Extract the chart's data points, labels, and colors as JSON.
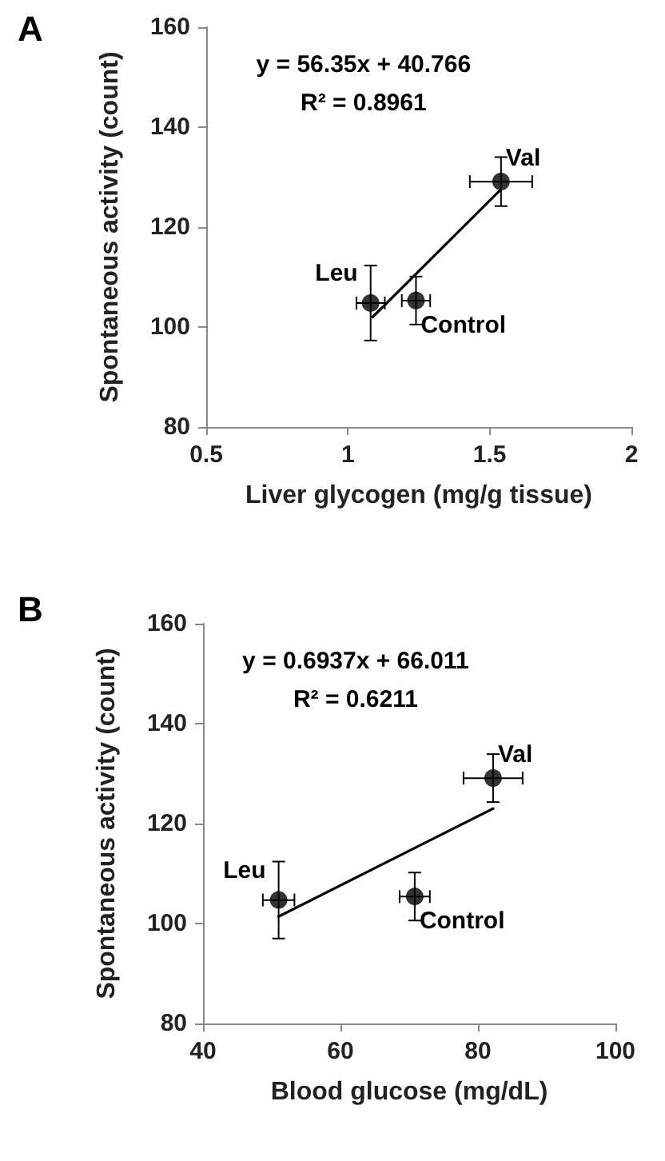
{
  "chart_data": [
    {
      "type": "scatter",
      "title": "A",
      "xlabel": "Liver glycogen (mg/g tissue)",
      "ylabel": "Spontaneous activity (count)",
      "xlim": [
        0.5,
        2
      ],
      "xticks": [
        0.5,
        1,
        1.5,
        2
      ],
      "ylim": [
        80,
        160
      ],
      "yticks": [
        80,
        100,
        120,
        140,
        160
      ],
      "grid": false,
      "series": [
        {
          "color": "#000000",
          "marker": "circle",
          "x": [
            1.08,
            1.24,
            1.54
          ],
          "values": [
            104.8,
            105.3,
            129.1
          ],
          "errors": [
            7.5,
            4.8,
            4.9
          ],
          "xerrors": [
            0.05,
            0.05,
            0.11
          ]
        },
        {
          "type": "line",
          "color": "#000000",
          "marker": "none",
          "line_style": "solid",
          "x": [
            1.087,
            1.539
          ],
          "values": [
            102.0,
            127.5
          ]
        }
      ],
      "annotations": [
        "y = 56.35x + 40.766",
        "R² = 0.8961",
        {
          "text": "Leu",
          "x": 1.08,
          "y": 104.8
        },
        {
          "text": "Control",
          "x": 1.24,
          "y": 105.3
        },
        {
          "text": "Val",
          "x": 1.54,
          "y": 129.1
        }
      ]
    },
    {
      "type": "scatter",
      "title": "B",
      "xlabel": "Blood glucose (mg/dL)",
      "ylabel": "Spontaneous activity (count)",
      "xlim": [
        40,
        100
      ],
      "xticks": [
        40,
        60,
        80,
        100
      ],
      "ylim": [
        80,
        160
      ],
      "yticks": [
        80,
        100,
        120,
        140,
        160
      ],
      "grid": false,
      "series": [
        {
          "color": "#000000",
          "marker": "circle",
          "x": [
            51.0,
            70.8,
            82.2
          ],
          "values": [
            104.7,
            105.4,
            129.1
          ],
          "errors": [
            7.7,
            4.8,
            4.8
          ],
          "xerrors": [
            2.3,
            2.2,
            4.3
          ]
        },
        {
          "type": "line",
          "color": "#000000",
          "marker": "none",
          "line_style": "solid",
          "x": [
            51.0,
            82.2
          ],
          "values": [
            101.4,
            123.0
          ]
        }
      ],
      "annotations": [
        "y = 0.6937x + 66.011",
        "R² = 0.6211",
        {
          "text": "Leu",
          "x": 51.0,
          "y": 104.7
        },
        {
          "text": "Control",
          "x": 70.8,
          "y": 105.4
        },
        {
          "text": "Val",
          "x": 82.2,
          "y": 129.1
        }
      ]
    }
  ]
}
